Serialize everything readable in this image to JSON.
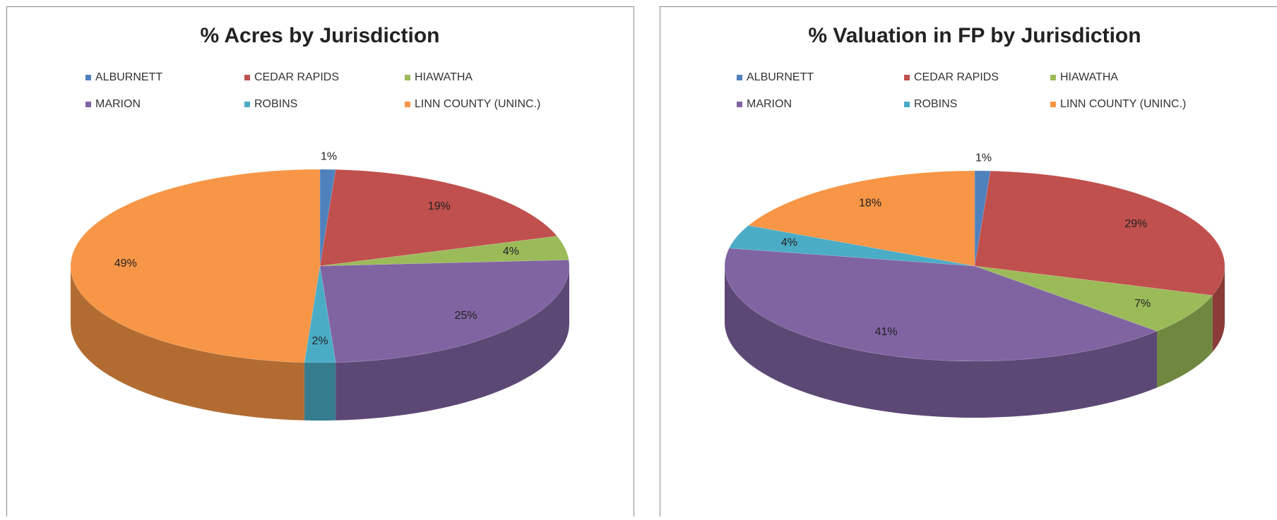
{
  "chart_data": [
    {
      "type": "pie",
      "title": "% Acres by Jurisdiction",
      "categories": [
        "ALBURNETT",
        "CEDAR RAPIDS",
        "HIAWATHA",
        "MARION",
        "ROBINS",
        "LINN COUNTY (UNINC.)"
      ],
      "values": [
        1,
        19,
        4,
        25,
        2,
        49
      ],
      "value_labels": [
        "1%",
        "19%",
        "4%",
        "25%",
        "2%",
        "49%"
      ],
      "colors": [
        "#4f81bd",
        "#c0504d",
        "#9bbb59",
        "#8064a2",
        "#4bacc6",
        "#f79646"
      ],
      "legend": "top"
    },
    {
      "type": "pie",
      "title": "% Valuation in FP by Jurisdiction",
      "categories": [
        "ALBURNETT",
        "CEDAR RAPIDS",
        "HIAWATHA",
        "MARION",
        "ROBINS",
        "LINN COUNTY (UNINC.)"
      ],
      "values": [
        1,
        29,
        7,
        41,
        4,
        18
      ],
      "value_labels": [
        "1%",
        "29%",
        "7%",
        "41%",
        "4%",
        "18%"
      ],
      "colors": [
        "#4f81bd",
        "#c0504d",
        "#9bbb59",
        "#8064a2",
        "#4bacc6",
        "#f79646"
      ],
      "legend": "top"
    }
  ]
}
